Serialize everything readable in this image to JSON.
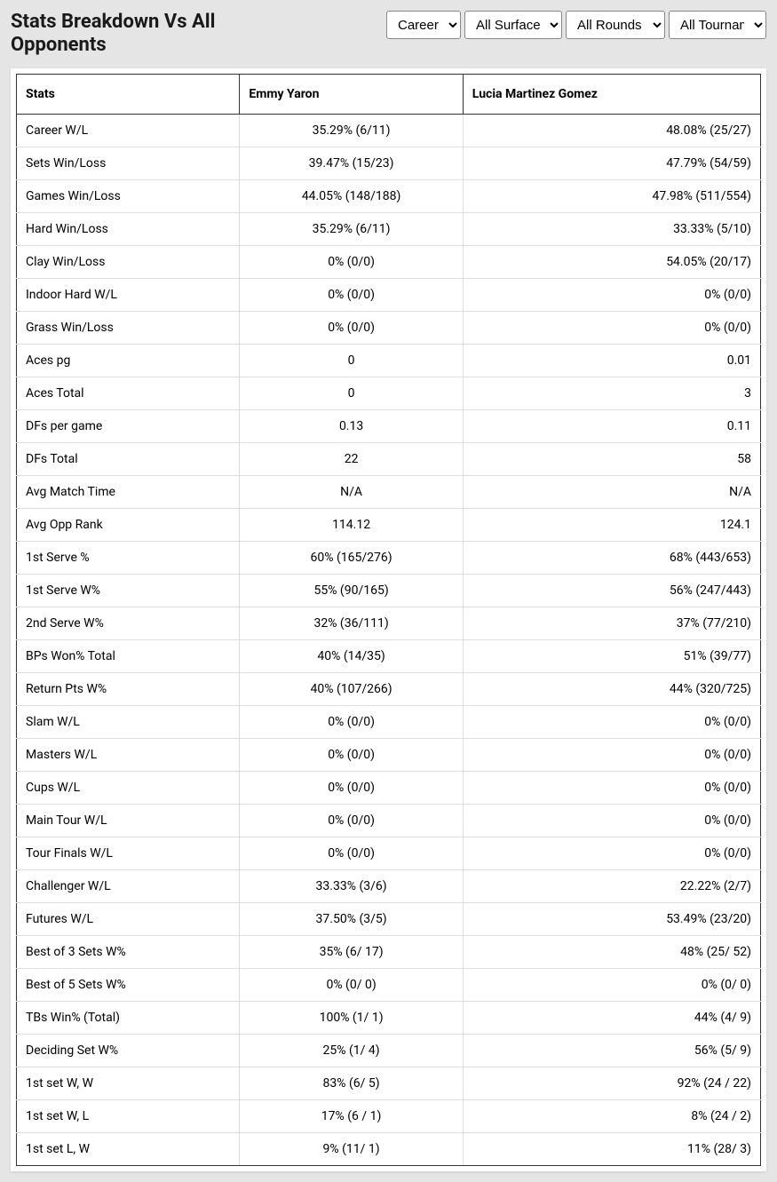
{
  "title": "Stats Breakdown Vs All Opponents",
  "filters": {
    "career": "Career",
    "surface": "All Surfaces",
    "rounds": "All Rounds",
    "tournaments": "All Tournaments"
  },
  "columns": {
    "stats": "Stats",
    "player1": "Emmy Yaron",
    "player2": "Lucia Martinez Gomez"
  },
  "rows": [
    {
      "label": "Career W/L",
      "p1": "35.29% (6/11)",
      "p2": "48.08% (25/27)"
    },
    {
      "label": "Sets Win/Loss",
      "p1": "39.47% (15/23)",
      "p2": "47.79% (54/59)"
    },
    {
      "label": "Games Win/Loss",
      "p1": "44.05% (148/188)",
      "p2": "47.98% (511/554)"
    },
    {
      "label": "Hard Win/Loss",
      "p1": "35.29% (6/11)",
      "p2": "33.33% (5/10)"
    },
    {
      "label": "Clay Win/Loss",
      "p1": "0% (0/0)",
      "p2": "54.05% (20/17)"
    },
    {
      "label": "Indoor Hard W/L",
      "p1": "0% (0/0)",
      "p2": "0% (0/0)"
    },
    {
      "label": "Grass Win/Loss",
      "p1": "0% (0/0)",
      "p2": "0% (0/0)"
    },
    {
      "label": "Aces pg",
      "p1": "0",
      "p2": "0.01"
    },
    {
      "label": "Aces Total",
      "p1": "0",
      "p2": "3"
    },
    {
      "label": "DFs per game",
      "p1": "0.13",
      "p2": "0.11"
    },
    {
      "label": "DFs Total",
      "p1": "22",
      "p2": "58"
    },
    {
      "label": "Avg Match Time",
      "p1": "N/A",
      "p2": "N/A"
    },
    {
      "label": "Avg Opp Rank",
      "p1": "114.12",
      "p2": "124.1"
    },
    {
      "label": "1st Serve %",
      "p1": "60% (165/276)",
      "p2": "68% (443/653)"
    },
    {
      "label": "1st Serve W%",
      "p1": "55% (90/165)",
      "p2": "56% (247/443)"
    },
    {
      "label": "2nd Serve W%",
      "p1": "32% (36/111)",
      "p2": "37% (77/210)"
    },
    {
      "label": "BPs Won% Total",
      "p1": "40% (14/35)",
      "p2": "51% (39/77)"
    },
    {
      "label": "Return Pts W%",
      "p1": "40% (107/266)",
      "p2": "44% (320/725)"
    },
    {
      "label": "Slam W/L",
      "p1": "0% (0/0)",
      "p2": "0% (0/0)"
    },
    {
      "label": "Masters W/L",
      "p1": "0% (0/0)",
      "p2": "0% (0/0)"
    },
    {
      "label": "Cups W/L",
      "p1": "0% (0/0)",
      "p2": "0% (0/0)"
    },
    {
      "label": "Main Tour W/L",
      "p1": "0% (0/0)",
      "p2": "0% (0/0)"
    },
    {
      "label": "Tour Finals W/L",
      "p1": "0% (0/0)",
      "p2": "0% (0/0)"
    },
    {
      "label": "Challenger W/L",
      "p1": "33.33% (3/6)",
      "p2": "22.22% (2/7)"
    },
    {
      "label": "Futures W/L",
      "p1": "37.50% (3/5)",
      "p2": "53.49% (23/20)"
    },
    {
      "label": "Best of 3 Sets W%",
      "p1": "35% (6/ 17)",
      "p2": "48% (25/ 52)"
    },
    {
      "label": "Best of 5 Sets W%",
      "p1": "0% (0/ 0)",
      "p2": "0% (0/ 0)"
    },
    {
      "label": "TBs Win% (Total)",
      "p1": "100% (1/ 1)",
      "p2": "44% (4/ 9)"
    },
    {
      "label": "Deciding Set W%",
      "p1": "25% (1/ 4)",
      "p2": "56% (5/ 9)"
    },
    {
      "label": "1st set W, W",
      "p1": "83% (6/ 5)",
      "p2": "92% (24 / 22)"
    },
    {
      "label": "1st set W, L",
      "p1": "17% (6 / 1)",
      "p2": "8% (24 / 2)"
    },
    {
      "label": "1st set L, W",
      "p1": "9% (11/ 1)",
      "p2": "11% (28/ 3)"
    }
  ]
}
